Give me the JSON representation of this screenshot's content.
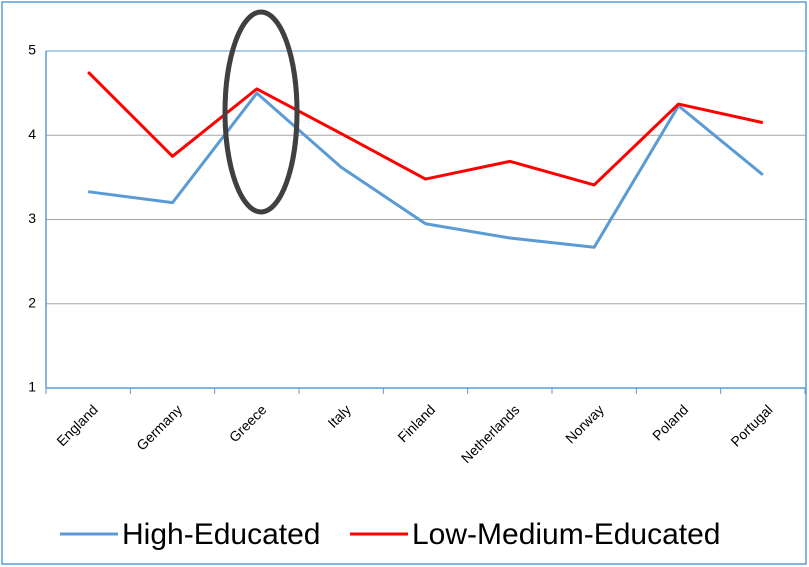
{
  "chart_data": {
    "type": "line",
    "categories": [
      "England",
      "Germany",
      "Greece",
      "Italy",
      "Finland",
      "Netherlands",
      "Norway",
      "Poland",
      "Portugal"
    ],
    "series": [
      {
        "name": "High-Educated",
        "color": "#5b9bd5",
        "values": [
          3.33,
          3.2,
          4.5,
          3.62,
          2.95,
          2.78,
          2.67,
          4.35,
          3.53
        ]
      },
      {
        "name": "Low-Medium-Educated",
        "color": "#ff0000",
        "values": [
          4.75,
          3.75,
          4.55,
          4.02,
          3.48,
          3.69,
          3.41,
          4.37,
          4.15
        ]
      }
    ],
    "ylim": [
      1,
      5
    ],
    "yticks": [
      1,
      2,
      3,
      4,
      5
    ],
    "grid": true,
    "legend": "bottom"
  }
}
